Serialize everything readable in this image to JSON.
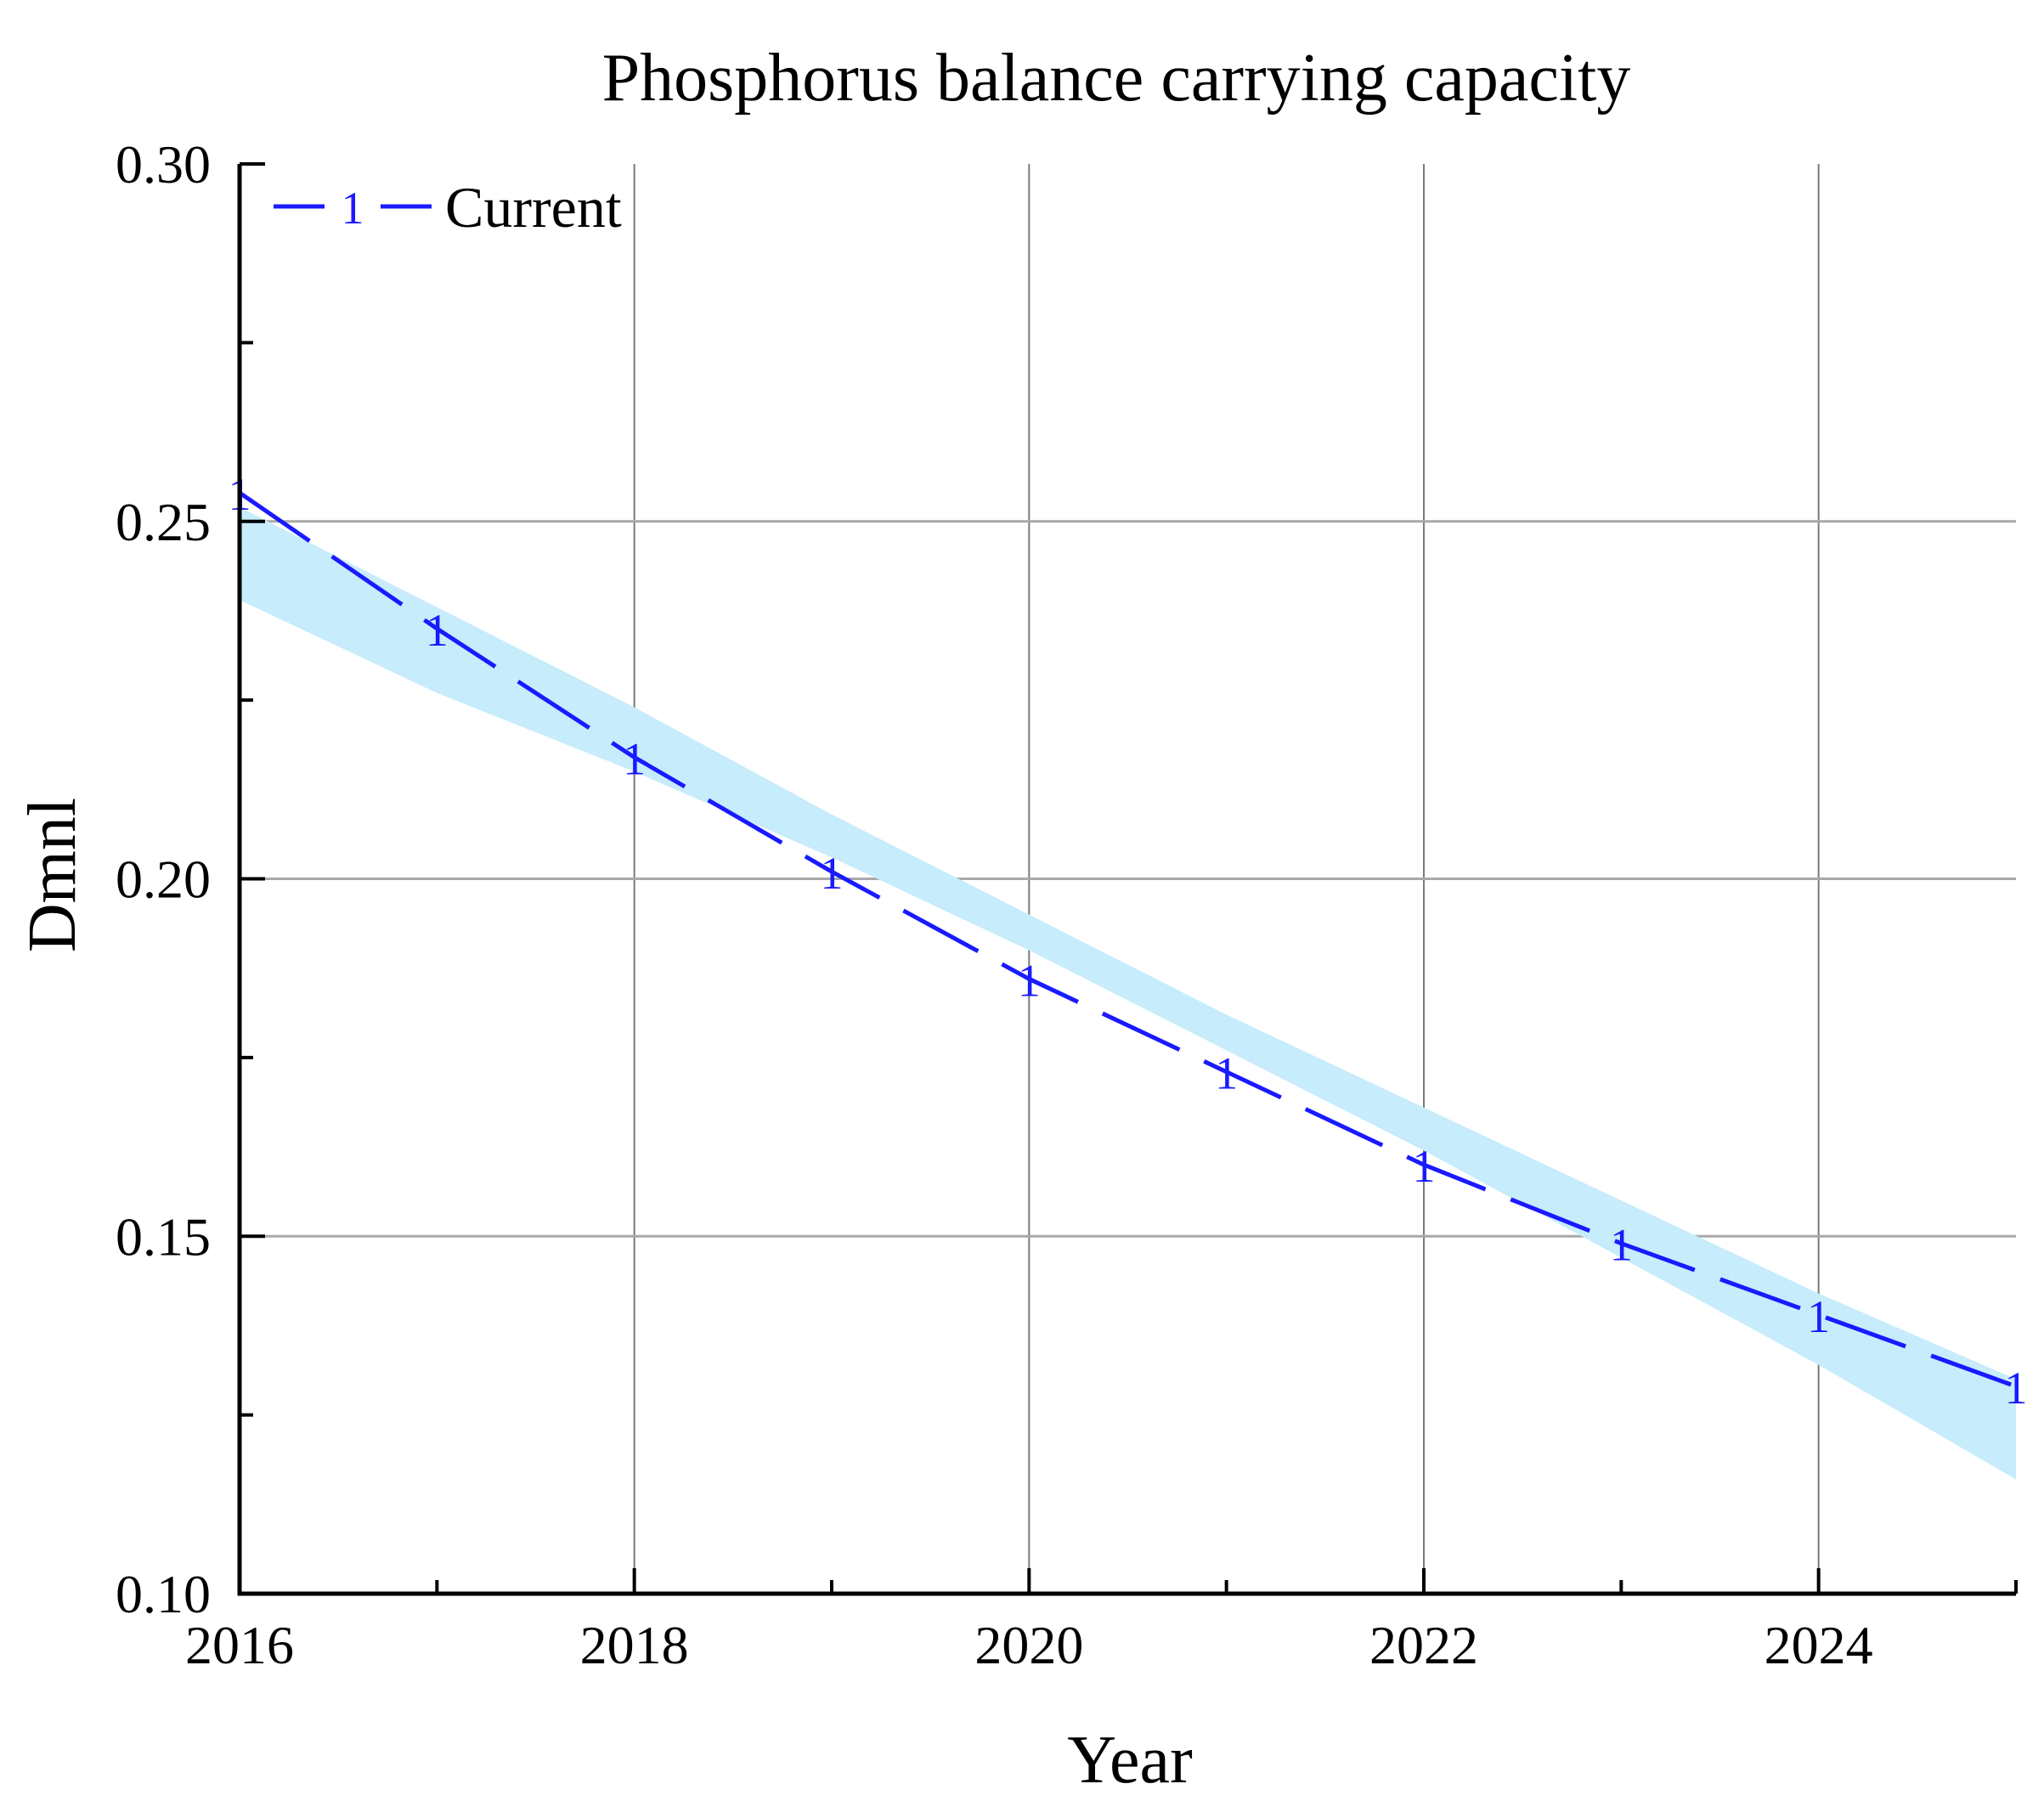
{
  "chart_data": {
    "type": "line",
    "title": "Phosphorus balance carrying capacity",
    "xlabel": "Year",
    "ylabel": "Dmnl",
    "xlim": [
      2016,
      2025
    ],
    "ylim": [
      0.1,
      0.3
    ],
    "x_ticks": [
      "2016",
      "2018",
      "2020",
      "2022",
      "2024"
    ],
    "y_ticks": [
      "0.10",
      "0.15",
      "0.20",
      "0.25",
      "0.30"
    ],
    "grid": true,
    "legend": {
      "position": "top-left",
      "entries": [
        "Current"
      ]
    },
    "series": [
      {
        "name": "Current",
        "marker_label": "1",
        "color": "#1a1aff",
        "line_style": "dashed",
        "x": [
          2016,
          2017,
          2018,
          2019,
          2020,
          2021,
          2022,
          2023,
          2024,
          2025
        ],
        "values": [
          0.254,
          0.235,
          0.217,
          0.201,
          0.186,
          0.173,
          0.16,
          0.149,
          0.139,
          0.129
        ]
      }
    ],
    "band": {
      "color": "#c7ecfb",
      "x": [
        2016,
        2017,
        2018,
        2019,
        2020,
        2021,
        2022,
        2023,
        2024,
        2025
      ],
      "upper": [
        0.252,
        0.238,
        0.224,
        0.209,
        0.195,
        0.181,
        0.168,
        0.155,
        0.142,
        0.13
      ],
      "lower": [
        0.239,
        0.226,
        0.215,
        0.203,
        0.19,
        0.176,
        0.162,
        0.147,
        0.132,
        0.116
      ]
    }
  }
}
